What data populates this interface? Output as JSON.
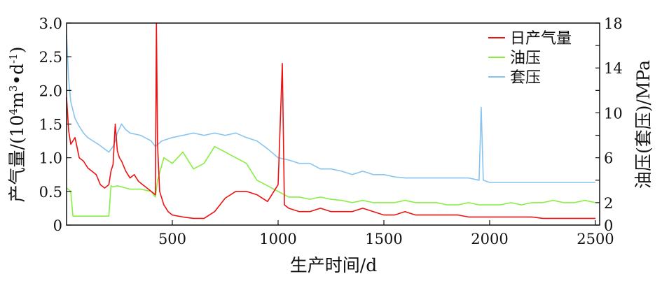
{
  "chart_data": {
    "type": "line",
    "xlabel": "生产时间/d",
    "ylabel_left": "产气量/(10",
    "ylabel_left_sup": "4",
    "ylabel_left_mid": "m",
    "ylabel_left_sup2": "3",
    "ylabel_left_tail": "•d",
    "ylabel_left_sup3": "-1",
    "ylabel_left_end": ")",
    "ylabel_right": "油压(套压)/MPa",
    "xlim": [
      0,
      2520
    ],
    "ylim_left": [
      0,
      3.0
    ],
    "ylim_right": [
      0,
      18
    ],
    "x_ticks": [
      "500",
      "1000",
      "1500",
      "2000",
      "2500"
    ],
    "x_tick_values": [
      500,
      1000,
      1500,
      2000,
      2500
    ],
    "y_left_ticks": [
      "0",
      "0.5",
      "1.0",
      "1.5",
      "2.0",
      "2.5",
      "3.0"
    ],
    "y_left_tick_values": [
      0,
      0.5,
      1.0,
      1.5,
      2.0,
      2.5,
      3.0
    ],
    "y_right_ticks": [
      "0",
      "2",
      "6",
      "10",
      "14",
      "18"
    ],
    "y_right_tick_values": [
      0,
      2,
      6,
      10,
      14,
      18
    ],
    "legend_position": "top-right",
    "series": [
      {
        "name": "日产气量",
        "axis": "left",
        "color": "#ee1111",
        "x": [
          0,
          10,
          20,
          40,
          60,
          80,
          100,
          120,
          140,
          160,
          180,
          200,
          210,
          220,
          230,
          240,
          250,
          260,
          280,
          300,
          320,
          340,
          360,
          380,
          400,
          420,
          425,
          430,
          440,
          460,
          480,
          500,
          550,
          600,
          650,
          700,
          750,
          800,
          850,
          900,
          950,
          1000,
          1020,
          1030,
          1050,
          1100,
          1150,
          1200,
          1250,
          1300,
          1350,
          1400,
          1450,
          1500,
          1550,
          1600,
          1650,
          1700,
          1750,
          1800,
          1850,
          1900,
          1950,
          2000,
          2050,
          2100,
          2150,
          2200,
          2250,
          2300,
          2350,
          2400,
          2450,
          2500
        ],
        "y": [
          1.9,
          1.4,
          1.2,
          1.3,
          1.0,
          0.95,
          0.85,
          0.8,
          0.75,
          0.6,
          0.55,
          0.6,
          0.8,
          0.9,
          1.5,
          1.1,
          1.0,
          0.95,
          0.8,
          0.7,
          0.75,
          0.65,
          0.6,
          0.55,
          0.5,
          0.45,
          3.0,
          1.2,
          0.5,
          0.3,
          0.2,
          0.15,
          0.12,
          0.1,
          0.1,
          0.2,
          0.4,
          0.5,
          0.5,
          0.45,
          0.35,
          0.6,
          2.4,
          0.3,
          0.25,
          0.2,
          0.2,
          0.25,
          0.2,
          0.2,
          0.2,
          0.25,
          0.2,
          0.15,
          0.15,
          0.2,
          0.15,
          0.15,
          0.15,
          0.15,
          0.15,
          0.12,
          0.12,
          0.12,
          0.12,
          0.12,
          0.12,
          0.12,
          0.1,
          0.1,
          0.1,
          0.1,
          0.1,
          0.1
        ]
      },
      {
        "name": "油压",
        "axis": "right",
        "color": "#88ee44",
        "x": [
          0,
          20,
          30,
          60,
          100,
          150,
          200,
          210,
          220,
          240,
          260,
          300,
          350,
          400,
          420,
          430,
          460,
          500,
          550,
          600,
          650,
          700,
          750,
          800,
          850,
          900,
          950,
          1000,
          1050,
          1100,
          1150,
          1200,
          1250,
          1300,
          1350,
          1400,
          1450,
          1500,
          1550,
          1600,
          1650,
          1700,
          1750,
          1800,
          1850,
          1900,
          1950,
          2000,
          2050,
          2100,
          2150,
          2200,
          2250,
          2300,
          2350,
          2400,
          2450,
          2500
        ],
        "y": [
          3.3,
          3.0,
          0.8,
          0.8,
          0.8,
          0.8,
          0.8,
          3.5,
          3.4,
          3.5,
          3.4,
          3.2,
          3.2,
          3.0,
          2.5,
          4.0,
          6.0,
          5.5,
          6.5,
          5.0,
          5.5,
          7.0,
          6.5,
          6.0,
          5.5,
          4.0,
          3.5,
          3.0,
          2.5,
          2.5,
          2.3,
          2.5,
          2.3,
          2.2,
          2.0,
          2.2,
          2.0,
          2.0,
          2.0,
          2.2,
          2.0,
          2.0,
          2.0,
          1.8,
          1.8,
          2.0,
          1.8,
          1.8,
          1.8,
          2.0,
          1.8,
          2.0,
          2.0,
          2.2,
          2.0,
          2.0,
          2.2,
          2.0
        ]
      },
      {
        "name": "套压",
        "axis": "right",
        "color": "#88c4f0",
        "x": [
          0,
          5,
          10,
          20,
          40,
          60,
          80,
          100,
          150,
          200,
          220,
          230,
          240,
          260,
          280,
          300,
          350,
          400,
          420,
          450,
          500,
          550,
          600,
          650,
          700,
          750,
          800,
          850,
          900,
          950,
          1000,
          1050,
          1100,
          1150,
          1200,
          1250,
          1300,
          1350,
          1400,
          1450,
          1500,
          1550,
          1600,
          1650,
          1700,
          1750,
          1800,
          1850,
          1900,
          1950,
          1960,
          1970,
          2000,
          2050,
          2100,
          2150,
          2200,
          2250,
          2300,
          2350,
          2400,
          2450,
          2500
        ],
        "y": [
          17.0,
          15.0,
          13.0,
          11.0,
          9.5,
          8.8,
          8.2,
          7.8,
          7.2,
          6.5,
          7.0,
          7.5,
          8.2,
          9.0,
          8.5,
          8.2,
          8.0,
          7.5,
          7.0,
          7.5,
          7.8,
          8.0,
          8.2,
          8.0,
          8.2,
          8.0,
          8.2,
          7.8,
          7.5,
          6.8,
          6.0,
          5.8,
          5.5,
          5.5,
          5.0,
          5.0,
          4.8,
          4.5,
          4.8,
          4.5,
          4.5,
          4.3,
          4.2,
          4.2,
          4.2,
          4.2,
          4.2,
          4.2,
          4.2,
          4.0,
          10.5,
          4.0,
          3.8,
          3.8,
          3.8,
          3.8,
          3.8,
          3.8,
          3.8,
          3.8,
          3.8,
          3.8,
          3.8
        ]
      }
    ]
  }
}
